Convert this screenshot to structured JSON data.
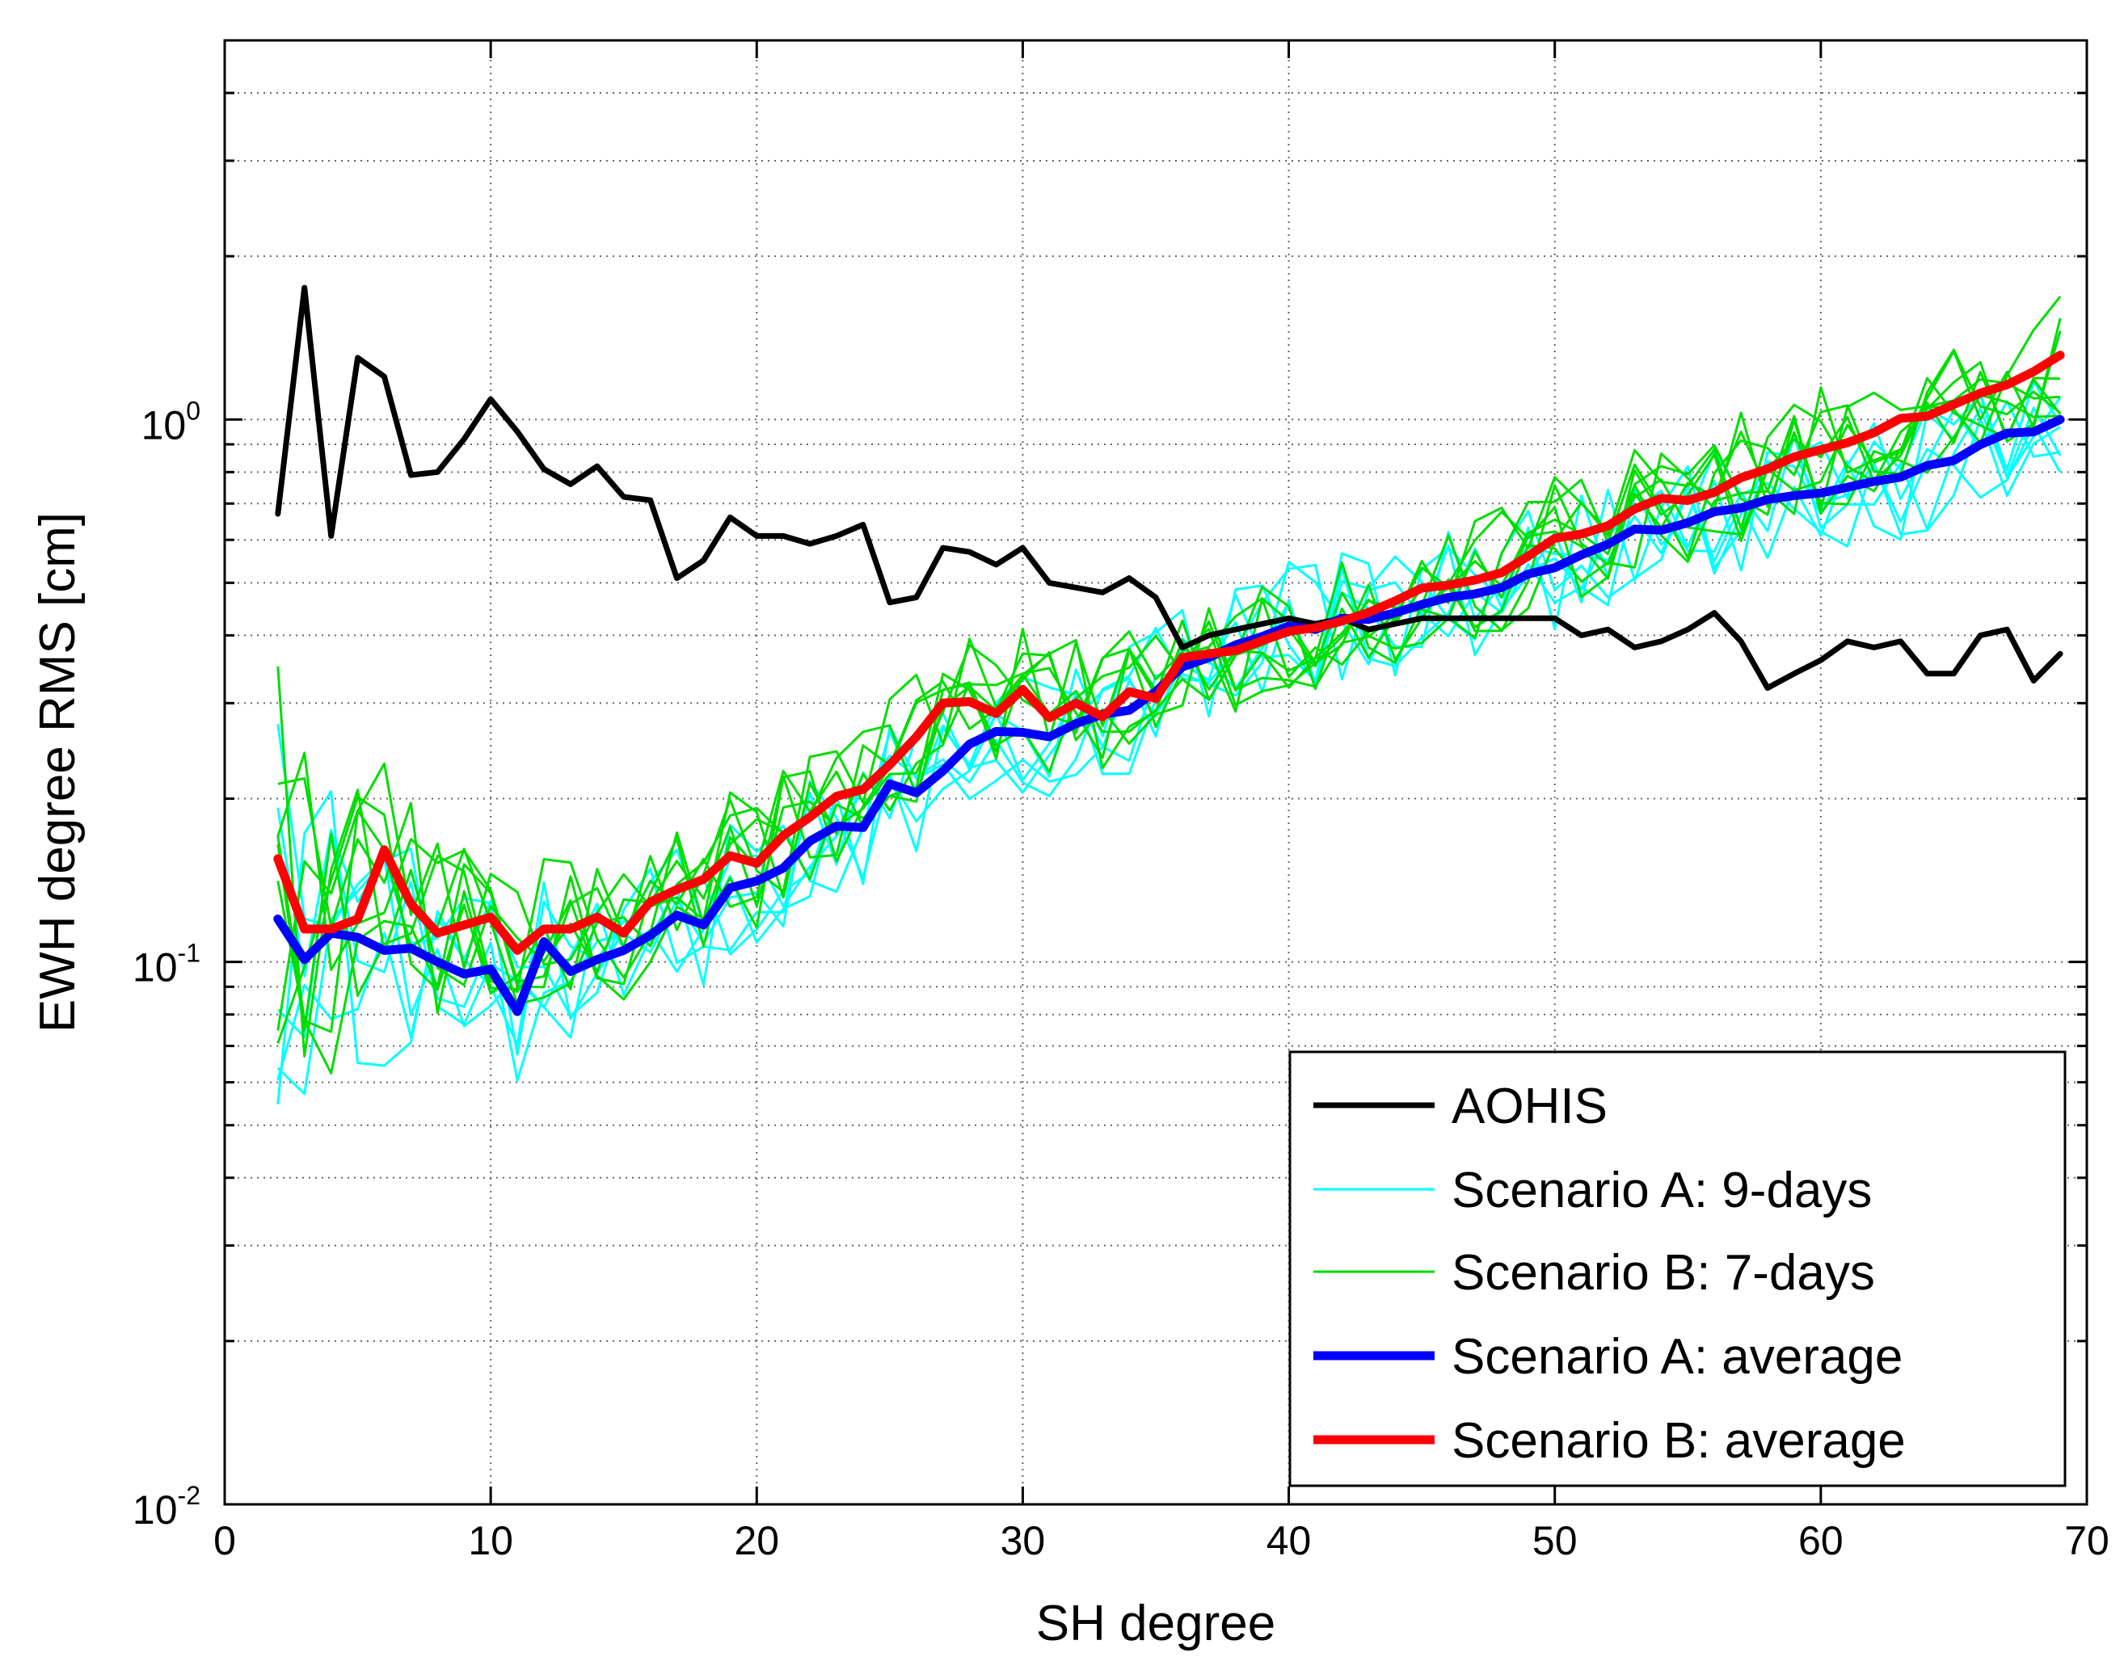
{
  "chart_data": {
    "type": "line",
    "title": "",
    "xlabel": "SH degree",
    "ylabel": "EWH degree RMS [cm]",
    "xlim": [
      0,
      70
    ],
    "ylim": [
      0.01,
      5
    ],
    "yscale": "log",
    "grid": true,
    "legend_position": "bottom-right",
    "xticks": [
      0,
      10,
      20,
      30,
      40,
      50,
      60,
      70
    ],
    "xtick_labels": [
      "0",
      "10",
      "20",
      "30",
      "40",
      "50",
      "60",
      "70"
    ],
    "yticks": [
      0.01,
      0.1,
      1
    ],
    "ytick_labels": [
      {
        "base": "10",
        "exp": "-2"
      },
      {
        "base": "10",
        "exp": "-1"
      },
      {
        "base": "10",
        "exp": "0"
      }
    ],
    "legend": [
      {
        "label": "AOHIS",
        "color": "#000000",
        "kind": "thick"
      },
      {
        "label": "Scenario A: 9-days",
        "color": "#00FFFF",
        "kind": "thin"
      },
      {
        "label": "Scenario B: 7-days",
        "color": "#00DD00",
        "kind": "thin"
      },
      {
        "label": "Scenario A: average",
        "color": "#0000FF",
        "kind": "bold"
      },
      {
        "label": "Scenario B: average",
        "color": "#FF0000",
        "kind": "bold"
      }
    ],
    "x": [
      2,
      3,
      4,
      5,
      6,
      7,
      8,
      9,
      10,
      11,
      12,
      13,
      14,
      15,
      16,
      17,
      18,
      19,
      20,
      21,
      22,
      23,
      24,
      25,
      26,
      27,
      28,
      29,
      30,
      31,
      32,
      33,
      34,
      35,
      36,
      37,
      38,
      39,
      40,
      41,
      42,
      43,
      44,
      45,
      46,
      47,
      48,
      49,
      50,
      51,
      52,
      53,
      54,
      55,
      56,
      57,
      58,
      59,
      60,
      61,
      62,
      63,
      64,
      65,
      66,
      67,
      68,
      69
    ],
    "series": [
      {
        "name": "AOHIS",
        "color": "#000000",
        "width": 7,
        "values": [
          0.67,
          1.75,
          0.61,
          1.3,
          1.2,
          0.79,
          0.8,
          0.92,
          1.09,
          0.95,
          0.81,
          0.76,
          0.82,
          0.72,
          0.71,
          0.51,
          0.55,
          0.66,
          0.61,
          0.61,
          0.59,
          0.61,
          0.64,
          0.46,
          0.47,
          0.58,
          0.57,
          0.54,
          0.58,
          0.5,
          0.49,
          0.48,
          0.51,
          0.47,
          0.38,
          0.4,
          0.41,
          0.42,
          0.43,
          0.42,
          0.43,
          0.41,
          0.42,
          0.43,
          0.43,
          0.43,
          0.43,
          0.43,
          0.43,
          0.4,
          0.41,
          0.38,
          0.39,
          0.41,
          0.44,
          0.39,
          0.32,
          0.34,
          0.36,
          0.39,
          0.38,
          0.39,
          0.34,
          0.34,
          0.4,
          0.41,
          0.33,
          0.37
        ]
      },
      {
        "name": "Scenario A: average",
        "color": "#0000FF",
        "width": 11,
        "values": [
          0.12,
          0.101,
          0.113,
          0.111,
          0.105,
          0.106,
          0.1,
          0.095,
          0.097,
          0.081,
          0.109,
          0.096,
          0.101,
          0.105,
          0.112,
          0.122,
          0.117,
          0.137,
          0.141,
          0.149,
          0.167,
          0.178,
          0.177,
          0.213,
          0.205,
          0.225,
          0.252,
          0.266,
          0.265,
          0.26,
          0.275,
          0.286,
          0.291,
          0.315,
          0.35,
          0.364,
          0.384,
          0.398,
          0.416,
          0.41,
          0.43,
          0.428,
          0.44,
          0.456,
          0.47,
          0.477,
          0.49,
          0.519,
          0.533,
          0.563,
          0.589,
          0.628,
          0.625,
          0.645,
          0.676,
          0.687,
          0.712,
          0.724,
          0.732,
          0.75,
          0.769,
          0.783,
          0.823,
          0.84,
          0.899,
          0.944,
          0.949,
          1.0
        ]
      },
      {
        "name": "Scenario B: average",
        "color": "#FF0000",
        "width": 11,
        "values": [
          0.155,
          0.115,
          0.115,
          0.12,
          0.161,
          0.128,
          0.113,
          0.117,
          0.121,
          0.105,
          0.115,
          0.115,
          0.121,
          0.113,
          0.129,
          0.136,
          0.142,
          0.157,
          0.152,
          0.171,
          0.185,
          0.202,
          0.208,
          0.231,
          0.26,
          0.3,
          0.302,
          0.287,
          0.318,
          0.282,
          0.3,
          0.283,
          0.315,
          0.306,
          0.364,
          0.37,
          0.375,
          0.391,
          0.407,
          0.413,
          0.425,
          0.441,
          0.463,
          0.489,
          0.495,
          0.506,
          0.522,
          0.56,
          0.604,
          0.615,
          0.637,
          0.684,
          0.716,
          0.709,
          0.734,
          0.781,
          0.811,
          0.853,
          0.88,
          0.906,
          0.946,
          1.005,
          1.014,
          1.066,
          1.119,
          1.159,
          1.226,
          1.314
        ]
      }
    ]
  }
}
